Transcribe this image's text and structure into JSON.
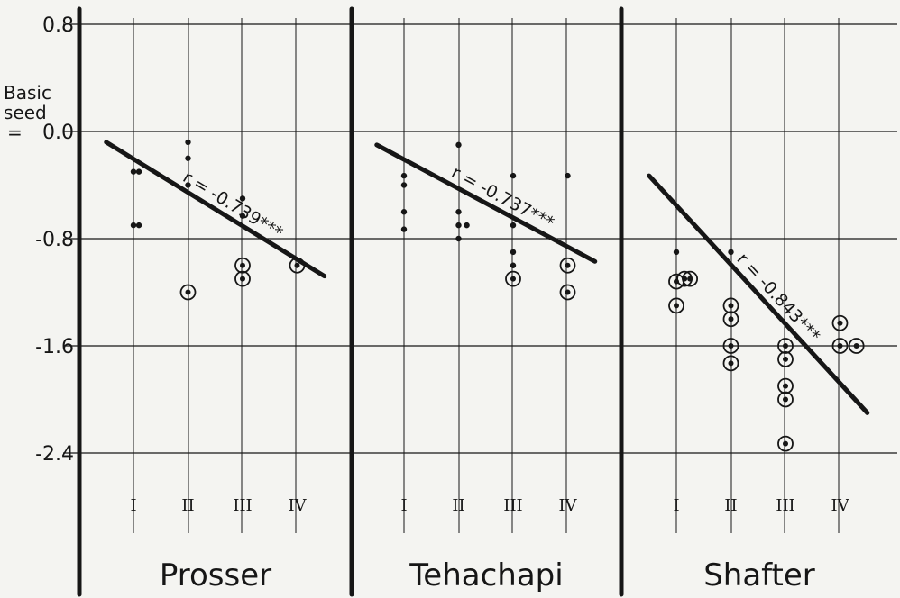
{
  "chart_data": {
    "type": "scatter",
    "ylabel": "Basic seed",
    "ylabel_suffix": "=",
    "yticks": [
      {
        "value": 0.8,
        "label": "0.8"
      },
      {
        "value": 0.0,
        "label": "0.0"
      },
      {
        "value": -0.8,
        "label": "-0.8"
      },
      {
        "value": -1.6,
        "label": "-1.6"
      },
      {
        "value": -2.4,
        "label": "-2.4"
      }
    ],
    "ylim": [
      -3.35,
      0.88
    ],
    "categories": [
      "I",
      "II",
      "III",
      "IV"
    ],
    "point_styles": {
      "dot": "plain dot",
      "circled": "circled dot"
    },
    "panels": [
      {
        "name": "Prosser",
        "correlation": "r = -0.739***",
        "regression": {
          "x_start": 0.5,
          "y_start": -0.08,
          "x_end": 4.5,
          "y_end": -1.08
        },
        "points": [
          {
            "x": 1,
            "y": -0.3,
            "style": "dot"
          },
          {
            "x": 1.1,
            "y": -0.3,
            "style": "dot"
          },
          {
            "x": 1,
            "y": -0.7,
            "style": "dot"
          },
          {
            "x": 1.1,
            "y": -0.7,
            "style": "dot"
          },
          {
            "x": 2,
            "y": -0.08,
            "style": "dot"
          },
          {
            "x": 2,
            "y": -0.2,
            "style": "dot"
          },
          {
            "x": 2,
            "y": -0.4,
            "style": "dot"
          },
          {
            "x": 2,
            "y": -1.2,
            "style": "circled"
          },
          {
            "x": 3,
            "y": -0.5,
            "style": "dot"
          },
          {
            "x": 3,
            "y": -0.63,
            "style": "dot"
          },
          {
            "x": 3,
            "y": -1.0,
            "style": "circled"
          },
          {
            "x": 3,
            "y": -1.1,
            "style": "circled"
          },
          {
            "x": 4,
            "y": -1.0,
            "style": "circled"
          }
        ]
      },
      {
        "name": "Tehachapi",
        "correlation": "r = -0.737***",
        "regression": {
          "x_start": 0.5,
          "y_start": -0.1,
          "x_end": 4.5,
          "y_end": -0.97
        },
        "points": [
          {
            "x": 1,
            "y": -0.33,
            "style": "dot"
          },
          {
            "x": 1,
            "y": -0.4,
            "style": "dot"
          },
          {
            "x": 1,
            "y": -0.6,
            "style": "dot"
          },
          {
            "x": 1,
            "y": -0.73,
            "style": "dot"
          },
          {
            "x": 2,
            "y": -0.1,
            "style": "dot"
          },
          {
            "x": 2,
            "y": -0.6,
            "style": "dot"
          },
          {
            "x": 2,
            "y": -0.7,
            "style": "dot"
          },
          {
            "x": 2.15,
            "y": -0.7,
            "style": "dot"
          },
          {
            "x": 2,
            "y": -0.8,
            "style": "dot"
          },
          {
            "x": 3,
            "y": -0.33,
            "style": "dot"
          },
          {
            "x": 3,
            "y": -0.7,
            "style": "dot"
          },
          {
            "x": 3,
            "y": -0.9,
            "style": "dot"
          },
          {
            "x": 3,
            "y": -1.0,
            "style": "dot"
          },
          {
            "x": 3,
            "y": -1.1,
            "style": "circled"
          },
          {
            "x": 4,
            "y": -0.33,
            "style": "dot"
          },
          {
            "x": 4,
            "y": -1.0,
            "style": "circled"
          },
          {
            "x": 4,
            "y": -1.2,
            "style": "circled"
          }
        ]
      },
      {
        "name": "Shafter",
        "correlation": "r = -0.843***",
        "regression": {
          "x_start": 0.5,
          "y_start": -0.33,
          "x_end": 4.5,
          "y_end": -2.1
        },
        "points": [
          {
            "x": 1,
            "y": -0.9,
            "style": "dot"
          },
          {
            "x": 1,
            "y": -1.12,
            "style": "circled"
          },
          {
            "x": 1.15,
            "y": -1.1,
            "style": "circled"
          },
          {
            "x": 1.25,
            "y": -1.1,
            "style": "circled"
          },
          {
            "x": 1,
            "y": -1.3,
            "style": "circled"
          },
          {
            "x": 2,
            "y": -0.9,
            "style": "dot"
          },
          {
            "x": 2,
            "y": -1.3,
            "style": "circled"
          },
          {
            "x": 2,
            "y": -1.4,
            "style": "circled"
          },
          {
            "x": 2,
            "y": -1.6,
            "style": "circled"
          },
          {
            "x": 2,
            "y": -1.73,
            "style": "circled"
          },
          {
            "x": 3,
            "y": -1.6,
            "style": "circled"
          },
          {
            "x": 3,
            "y": -1.7,
            "style": "circled"
          },
          {
            "x": 3,
            "y": -1.9,
            "style": "circled"
          },
          {
            "x": 3,
            "y": -2.0,
            "style": "circled"
          },
          {
            "x": 3,
            "y": -2.33,
            "style": "circled"
          },
          {
            "x": 4,
            "y": -1.43,
            "style": "circled"
          },
          {
            "x": 4,
            "y": -1.6,
            "style": "circled"
          },
          {
            "x": 4.3,
            "y": -1.6,
            "style": "circled"
          }
        ]
      }
    ]
  }
}
